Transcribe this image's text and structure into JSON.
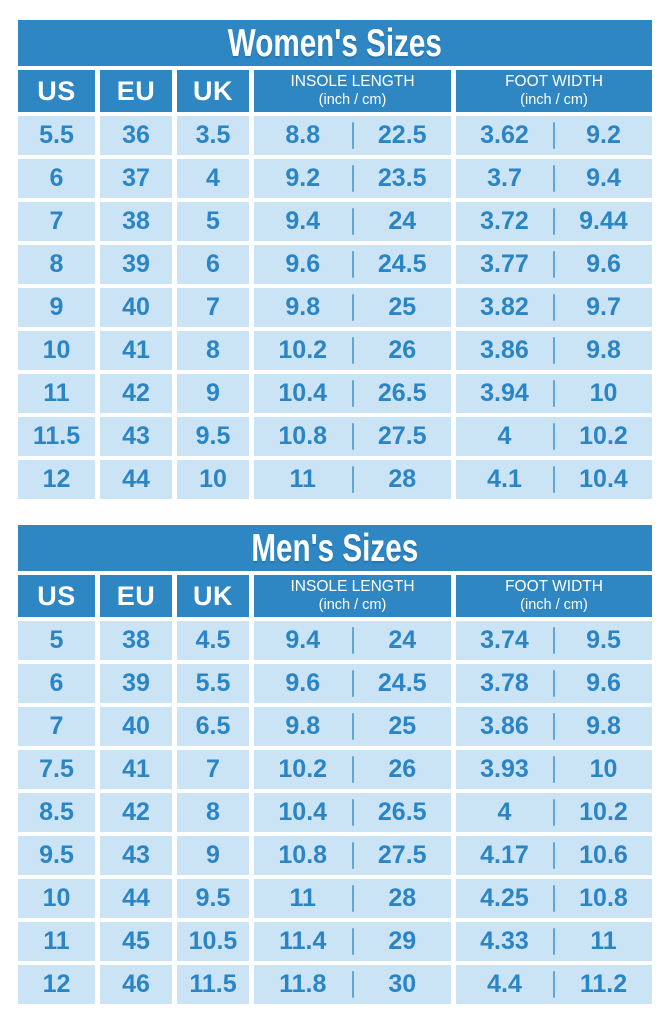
{
  "colors": {
    "primary": "#2E86C3",
    "cell_bg": "#CAE4F6",
    "value_text": "#2B85C4",
    "divider": "#5FA5D6",
    "header_text": "#FFFFFF",
    "page_bg": "#FFFFFF"
  },
  "chart_data": [
    {
      "type": "table",
      "title": "Women's Sizes",
      "columns": [
        "US",
        "EU",
        "UK",
        "INSOLE LENGTH (inch / cm)",
        "FOOT WIDTH (inch / cm)"
      ],
      "header": {
        "us": "US",
        "eu": "EU",
        "uk": "UK",
        "insole_title": "INSOLE LENGTH",
        "insole_sub": "(inch / cm)",
        "foot_title": "FOOT WIDTH",
        "foot_sub": "(inch / cm)"
      },
      "rows": [
        {
          "us": "5.5",
          "eu": "36",
          "uk": "3.5",
          "insole_in": "8.8",
          "insole_cm": "22.5",
          "foot_in": "3.62",
          "foot_cm": "9.2"
        },
        {
          "us": "6",
          "eu": "37",
          "uk": "4",
          "insole_in": "9.2",
          "insole_cm": "23.5",
          "foot_in": "3.7",
          "foot_cm": "9.4"
        },
        {
          "us": "7",
          "eu": "38",
          "uk": "5",
          "insole_in": "9.4",
          "insole_cm": "24",
          "foot_in": "3.72",
          "foot_cm": "9.44"
        },
        {
          "us": "8",
          "eu": "39",
          "uk": "6",
          "insole_in": "9.6",
          "insole_cm": "24.5",
          "foot_in": "3.77",
          "foot_cm": "9.6"
        },
        {
          "us": "9",
          "eu": "40",
          "uk": "7",
          "insole_in": "9.8",
          "insole_cm": "25",
          "foot_in": "3.82",
          "foot_cm": "9.7"
        },
        {
          "us": "10",
          "eu": "41",
          "uk": "8",
          "insole_in": "10.2",
          "insole_cm": "26",
          "foot_in": "3.86",
          "foot_cm": "9.8"
        },
        {
          "us": "11",
          "eu": "42",
          "uk": "9",
          "insole_in": "10.4",
          "insole_cm": "26.5",
          "foot_in": "3.94",
          "foot_cm": "10"
        },
        {
          "us": "11.5",
          "eu": "43",
          "uk": "9.5",
          "insole_in": "10.8",
          "insole_cm": "27.5",
          "foot_in": "4",
          "foot_cm": "10.2"
        },
        {
          "us": "12",
          "eu": "44",
          "uk": "10",
          "insole_in": "11",
          "insole_cm": "28",
          "foot_in": "4.1",
          "foot_cm": "10.4"
        }
      ]
    },
    {
      "type": "table",
      "title": "Men's Sizes",
      "columns": [
        "US",
        "EU",
        "UK",
        "INSOLE LENGTH (inch / cm)",
        "FOOT WIDTH (inch / cm)"
      ],
      "header": {
        "us": "US",
        "eu": "EU",
        "uk": "UK",
        "insole_title": "INSOLE LENGTH",
        "insole_sub": "(inch / cm)",
        "foot_title": "FOOT WIDTH",
        "foot_sub": "(inch / cm)"
      },
      "rows": [
        {
          "us": "5",
          "eu": "38",
          "uk": "4.5",
          "insole_in": "9.4",
          "insole_cm": "24",
          "foot_in": "3.74",
          "foot_cm": "9.5"
        },
        {
          "us": "6",
          "eu": "39",
          "uk": "5.5",
          "insole_in": "9.6",
          "insole_cm": "24.5",
          "foot_in": "3.78",
          "foot_cm": "9.6"
        },
        {
          "us": "7",
          "eu": "40",
          "uk": "6.5",
          "insole_in": "9.8",
          "insole_cm": "25",
          "foot_in": "3.86",
          "foot_cm": "9.8"
        },
        {
          "us": "7.5",
          "eu": "41",
          "uk": "7",
          "insole_in": "10.2",
          "insole_cm": "26",
          "foot_in": "3.93",
          "foot_cm": "10"
        },
        {
          "us": "8.5",
          "eu": "42",
          "uk": "8",
          "insole_in": "10.4",
          "insole_cm": "26.5",
          "foot_in": "4",
          "foot_cm": "10.2"
        },
        {
          "us": "9.5",
          "eu": "43",
          "uk": "9",
          "insole_in": "10.8",
          "insole_cm": "27.5",
          "foot_in": "4.17",
          "foot_cm": "10.6"
        },
        {
          "us": "10",
          "eu": "44",
          "uk": "9.5",
          "insole_in": "11",
          "insole_cm": "28",
          "foot_in": "4.25",
          "foot_cm": "10.8"
        },
        {
          "us": "11",
          "eu": "45",
          "uk": "10.5",
          "insole_in": "11.4",
          "insole_cm": "29",
          "foot_in": "4.33",
          "foot_cm": "11"
        },
        {
          "us": "12",
          "eu": "46",
          "uk": "11.5",
          "insole_in": "11.8",
          "insole_cm": "30",
          "foot_in": "4.4",
          "foot_cm": "11.2"
        }
      ]
    }
  ]
}
